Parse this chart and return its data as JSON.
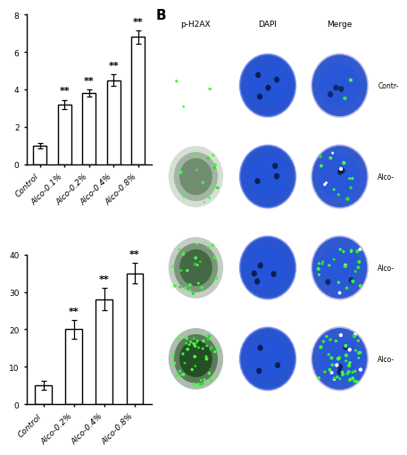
{
  "chart1": {
    "categories": [
      "Control",
      "Alco-0.1%",
      "Alco-0.2%",
      "Alco-0.4%",
      "Alco-0.8%"
    ],
    "values": [
      1.0,
      3.2,
      3.8,
      4.5,
      6.8
    ],
    "errors": [
      0.15,
      0.25,
      0.2,
      0.3,
      0.35
    ],
    "significance": [
      false,
      true,
      true,
      true,
      true
    ],
    "ylim": [
      0,
      8
    ],
    "yticks": [
      0,
      2,
      4,
      6,
      8
    ]
  },
  "chart2": {
    "categories": [
      "Control",
      "Alco-0.2%",
      "Alco-0.4%",
      "Alco-0.8%"
    ],
    "values": [
      5.0,
      20.0,
      28.0,
      35.0
    ],
    "errors": [
      1.2,
      2.5,
      3.0,
      2.8
    ],
    "significance": [
      false,
      true,
      true,
      true
    ],
    "ylim": [
      0,
      40
    ],
    "yticks": [
      0,
      10,
      20,
      30,
      40
    ]
  },
  "bar_color": "#ffffff",
  "bar_edgecolor": "#000000",
  "bar_width": 0.55,
  "errorbar_color": "#000000",
  "sig_text": "**",
  "sig_fontsize": 8,
  "tick_fontsize": 6.5,
  "axis_linewidth": 1.0,
  "panel_bg": "#ffffff",
  "col_labels": [
    "p-H2AX",
    "DAPI",
    "Merge"
  ],
  "row_labels": [
    "Contr-",
    "Alco-",
    "Alco-",
    "Alco-"
  ],
  "b_label_fontsize": 11
}
